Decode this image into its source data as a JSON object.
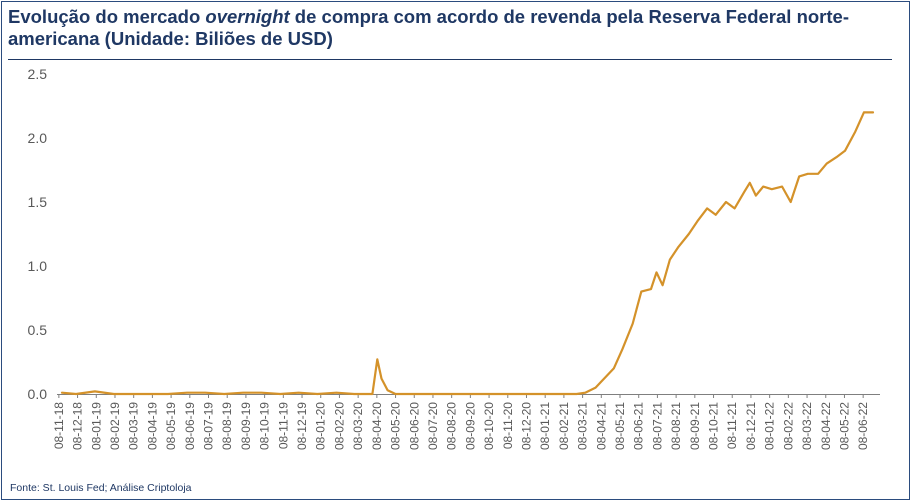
{
  "title": {
    "part1": "Evolução do mercado ",
    "italic": "overnight",
    "part2": " de compra com acordo de revenda pela Reserva Federal norte-americana (Unidade: Biliões de USD)"
  },
  "source": "Fonte: St. Louis Fed; Análise Criptoloja",
  "colors": {
    "line": "#d4922a",
    "axis": "#1f3864",
    "text": "#595959",
    "frame": "#2b4c7e"
  },
  "chart_data": {
    "type": "line",
    "title": "Evolução do mercado overnight de compra com acordo de revenda pela Reserva Federal norte-americana (Unidade: Biliões de USD)",
    "xlabel": "",
    "ylabel": "",
    "ylim": [
      0,
      2.5
    ],
    "yticks": [
      "0.0",
      "0.5",
      "1.0",
      "1.5",
      "2.0",
      "2.5"
    ],
    "xticks": [
      "08-11-18",
      "08-12-18",
      "08-01-19",
      "08-02-19",
      "08-03-19",
      "08-04-19",
      "08-05-19",
      "08-06-19",
      "08-07-19",
      "08-08-19",
      "08-09-19",
      "08-10-19",
      "08-11-19",
      "08-12-19",
      "08-01-20",
      "08-02-20",
      "08-03-20",
      "08-04-20",
      "08-05-20",
      "08-06-20",
      "08-07-20",
      "08-08-20",
      "08-09-20",
      "08-10-20",
      "08-11-20",
      "08-12-20",
      "08-01-21",
      "08-02-21",
      "08-03-21",
      "08-04-21",
      "08-05-21",
      "08-06-21",
      "08-07-21",
      "08-08-21",
      "08-09-21",
      "08-10-21",
      "08-11-21",
      "08-12-21",
      "08-01-22",
      "08-02-22",
      "08-03-22",
      "08-04-22",
      "08-05-22",
      "08-06-22"
    ],
    "grid": false,
    "legend": "none",
    "series": [
      {
        "x": [
          "2018-11-08",
          "2018-12-01",
          "2019-01-01",
          "2019-02-01",
          "2019-03-01",
          "2019-04-01",
          "2019-05-01",
          "2019-06-01",
          "2019-07-01",
          "2019-08-01",
          "2019-09-01",
          "2019-10-01",
          "2019-11-01",
          "2019-12-01",
          "2020-01-01",
          "2020-02-01",
          "2020-03-01",
          "2020-03-31",
          "2020-04-08",
          "2020-04-15",
          "2020-04-25",
          "2020-05-08",
          "2020-06-01",
          "2020-07-01",
          "2020-08-01",
          "2020-09-01",
          "2020-10-01",
          "2020-11-01",
          "2020-12-01",
          "2021-01-01",
          "2021-02-01",
          "2021-03-01",
          "2021-03-15",
          "2021-04-01",
          "2021-04-15",
          "2021-05-01",
          "2021-05-15",
          "2021-06-01",
          "2021-06-15",
          "2021-07-01",
          "2021-07-10",
          "2021-07-20",
          "2021-08-01",
          "2021-08-15",
          "2021-09-01",
          "2021-09-15",
          "2021-10-01",
          "2021-10-15",
          "2021-11-01",
          "2021-11-15",
          "2021-12-01",
          "2021-12-10",
          "2021-12-20",
          "2022-01-01",
          "2022-01-15",
          "2022-02-01",
          "2022-02-15",
          "2022-03-01",
          "2022-03-15",
          "2022-04-01",
          "2022-04-15",
          "2022-05-01",
          "2022-05-15",
          "2022-06-01",
          "2022-06-15",
          "2022-06-30"
        ],
        "values": [
          0.01,
          0.0,
          0.02,
          0.0,
          0.0,
          0.0,
          0.0,
          0.01,
          0.01,
          0.0,
          0.01,
          0.01,
          0.0,
          0.01,
          0.0,
          0.01,
          0.0,
          0.0,
          0.27,
          0.12,
          0.03,
          0.0,
          0.0,
          0.0,
          0.0,
          0.0,
          0.0,
          0.0,
          0.0,
          0.0,
          0.0,
          0.0,
          0.01,
          0.05,
          0.12,
          0.2,
          0.35,
          0.55,
          0.8,
          0.82,
          0.95,
          0.85,
          1.05,
          1.15,
          1.25,
          1.35,
          1.45,
          1.4,
          1.5,
          1.45,
          1.58,
          1.65,
          1.55,
          1.62,
          1.6,
          1.62,
          1.5,
          1.7,
          1.72,
          1.72,
          1.8,
          1.85,
          1.9,
          2.05,
          2.2,
          2.2
        ]
      }
    ]
  }
}
